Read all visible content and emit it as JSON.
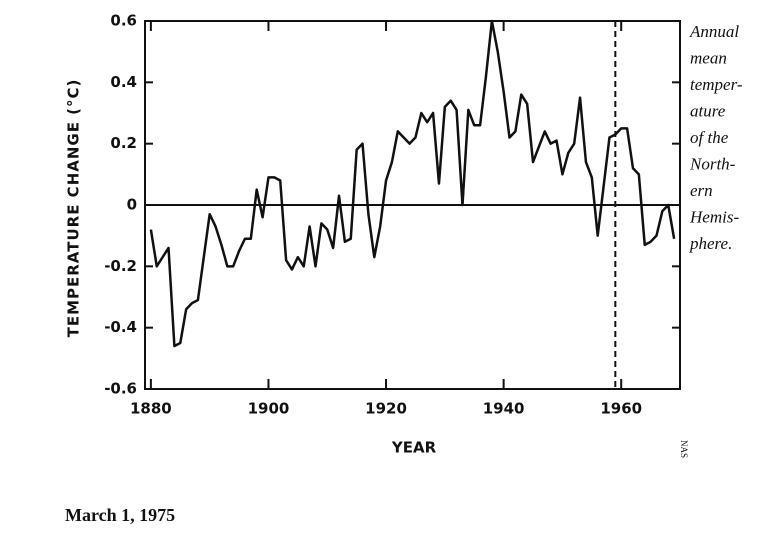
{
  "chart_data": {
    "type": "line",
    "x": [
      1880,
      1881,
      1882,
      1883,
      1884,
      1885,
      1886,
      1887,
      1888,
      1889,
      1890,
      1891,
      1892,
      1893,
      1894,
      1895,
      1896,
      1897,
      1898,
      1899,
      1900,
      1901,
      1902,
      1903,
      1904,
      1905,
      1906,
      1907,
      1908,
      1909,
      1910,
      1911,
      1912,
      1913,
      1914,
      1915,
      1916,
      1917,
      1918,
      1919,
      1920,
      1921,
      1922,
      1923,
      1924,
      1925,
      1926,
      1927,
      1928,
      1929,
      1930,
      1931,
      1932,
      1933,
      1934,
      1935,
      1936,
      1937,
      1938,
      1939,
      1940,
      1941,
      1942,
      1943,
      1944,
      1945,
      1946,
      1947,
      1948,
      1949,
      1950,
      1951,
      1952,
      1953,
      1954,
      1955,
      1956,
      1957,
      1958,
      1959,
      1960,
      1961,
      1962,
      1963,
      1964,
      1965,
      1966,
      1967,
      1968,
      1969
    ],
    "series": [
      {
        "color": "#111111",
        "values": [
          -0.08,
          -0.2,
          -0.17,
          -0.14,
          -0.46,
          -0.45,
          -0.34,
          -0.32,
          -0.31,
          -0.17,
          -0.03,
          -0.07,
          -0.13,
          -0.2,
          -0.2,
          -0.15,
          -0.11,
          -0.11,
          0.05,
          -0.04,
          0.09,
          0.09,
          0.08,
          -0.18,
          -0.21,
          -0.17,
          -0.2,
          -0.07,
          -0.2,
          -0.06,
          -0.08,
          -0.14,
          0.03,
          -0.12,
          -0.11,
          0.18,
          0.2,
          -0.03,
          -0.17,
          -0.07,
          0.08,
          0.14,
          0.24,
          0.22,
          0.2,
          0.22,
          0.3,
          0.27,
          0.3,
          0.07,
          0.32,
          0.34,
          0.31,
          0.0,
          0.31,
          0.26,
          0.26,
          0.42,
          0.6,
          0.5,
          0.37,
          0.22,
          0.24,
          0.36,
          0.33,
          0.14,
          0.19,
          0.24,
          0.2,
          0.21,
          0.1,
          0.17,
          0.2,
          0.35,
          0.14,
          0.09,
          -0.1,
          0.06,
          0.22,
          0.23,
          0.25,
          0.25,
          0.12,
          0.1,
          -0.13,
          -0.12,
          -0.1,
          -0.02,
          0.0,
          -0.11
        ]
      }
    ],
    "xlim": [
      1879,
      1970
    ],
    "xticks": [
      1880,
      1900,
      1920,
      1940,
      1960
    ],
    "ylim": [
      -0.6,
      0.6
    ],
    "yticks": [
      0.6,
      0.4,
      0.2,
      0,
      -0.2,
      -0.4,
      -0.6
    ],
    "x_label": "YEAR",
    "y_label": "TEMPERATURE CHANGE (°C)",
    "reference_line_x": 1959,
    "annotation_lines": [
      "Annual",
      "mean",
      "temper-",
      "ature",
      "of the",
      "North-",
      "ern",
      "Hemis-",
      "phere."
    ],
    "credit": "NAS",
    "date": "March 1, 1975"
  }
}
